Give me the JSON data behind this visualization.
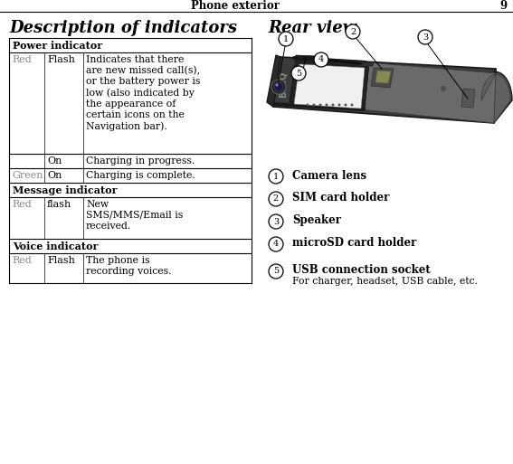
{
  "page_header": "Phone exterior",
  "page_num": "9",
  "left_title": "Description of indicators",
  "right_title": "Rear view",
  "table_rows": [
    {
      "type": "header",
      "text": "Power indicator"
    },
    {
      "type": "data3",
      "c1": "Red",
      "c1color": "red",
      "c2": "Flash",
      "c3": "Indicates that there\nare new missed call(s),\nor the battery power is\nlow (also indicated by\nthe appearance of\ncertain icons on the\nNavigation bar)."
    },
    {
      "type": "data3",
      "c1": "",
      "c1color": "black",
      "c2": "On",
      "c3": "Charging in progress."
    },
    {
      "type": "data3",
      "c1": "Green",
      "c1color": "green",
      "c2": "On",
      "c3": "Charging is complete."
    },
    {
      "type": "header",
      "text": "Message indicator"
    },
    {
      "type": "data3",
      "c1": "Red",
      "c1color": "red",
      "c2": "flash",
      "c3": "New\nSMS/MMS/Email is\nreceived."
    },
    {
      "type": "header",
      "text": "Voice indicator"
    },
    {
      "type": "data3",
      "c1": "Red",
      "c1color": "red",
      "c2": "Flash",
      "c3": "The phone is\nrecording voices."
    }
  ],
  "callouts": [
    {
      "bold": "Camera lens",
      "extra": ""
    },
    {
      "bold": "SIM card holder",
      "extra": ""
    },
    {
      "bold": "Speaker",
      "extra": ""
    },
    {
      "bold": "microSD card holder",
      "extra": ""
    },
    {
      "bold": "USB connection socket",
      "extra": "For charger, headset, USB cable, etc."
    }
  ],
  "color_red": "#888888",
  "color_green": "#888888",
  "color_black": "#000000",
  "color_bg": "#ffffff"
}
